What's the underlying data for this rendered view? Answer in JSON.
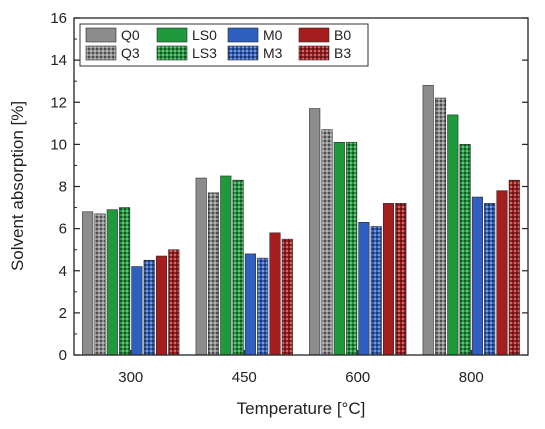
{
  "chart_data": {
    "type": "bar",
    "title": "",
    "xlabel": "Temperature [°C]",
    "ylabel": "Solvent absorption [%]",
    "categories": [
      "300",
      "450",
      "600",
      "800"
    ],
    "ylim": [
      0,
      16
    ],
    "yticks": [
      "0",
      "2",
      "4",
      "6",
      "8",
      "10",
      "12",
      "14",
      "16"
    ],
    "legend_position": "top-left",
    "grid": false,
    "series": [
      {
        "name": "Q0",
        "color": "#8c8c8c",
        "pattern": "solid",
        "values": [
          6.8,
          8.4,
          11.7,
          12.8
        ]
      },
      {
        "name": "Q3",
        "color": "#8c8c8c",
        "pattern": "checker",
        "values": [
          6.7,
          7.7,
          10.7,
          12.2
        ]
      },
      {
        "name": "LS0",
        "color": "#1e9a3c",
        "pattern": "solid",
        "values": [
          6.9,
          8.5,
          10.1,
          11.4
        ]
      },
      {
        "name": "LS3",
        "color": "#1e9a3c",
        "pattern": "checker",
        "values": [
          7.0,
          8.3,
          10.1,
          10.0
        ]
      },
      {
        "name": "M0",
        "color": "#2f5fbf",
        "pattern": "solid",
        "values": [
          4.2,
          4.8,
          6.3,
          7.5
        ]
      },
      {
        "name": "M3",
        "color": "#2f5fbf",
        "pattern": "checker",
        "values": [
          4.5,
          4.6,
          6.1,
          7.2
        ]
      },
      {
        "name": "B0",
        "color": "#a51d1d",
        "pattern": "solid",
        "values": [
          4.7,
          5.8,
          7.2,
          7.8
        ]
      },
      {
        "name": "B3",
        "color": "#a51d1d",
        "pattern": "checker",
        "values": [
          5.0,
          5.5,
          7.2,
          8.3
        ]
      }
    ]
  }
}
